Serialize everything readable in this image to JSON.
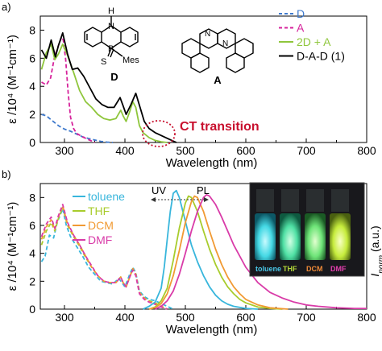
{
  "panel_labels": [
    "a)",
    "b)"
  ],
  "molecules": {
    "d_label": "D",
    "a_label": "A",
    "d_atoms": {
      "h": "H",
      "n": "N",
      "p": "P",
      "s": "S",
      "mes": "Mes"
    },
    "a_atoms": {
      "n1": "N",
      "n2": "N"
    }
  },
  "ct_label": "CT transition",
  "photo": {
    "labels": [
      "toluene",
      "THF",
      "DCM",
      "DMF"
    ],
    "label_colors": [
      "#49c6e6",
      "#b4d93a",
      "#f08a38",
      "#e63fb0"
    ]
  },
  "annot": {
    "uv": "UV",
    "pl": "PL"
  },
  "colors": {
    "D": "#3e79cc",
    "A": "#d6239b",
    "2D+A": "#8fc63c",
    "D-A-D": "#000000",
    "toluene": "#38b6dc",
    "THF": "#a8cc2c",
    "DCM": "#f19a33",
    "DMF": "#d93ba8",
    "ct": "#c8102e"
  },
  "chart_data": [
    {
      "type": "line",
      "xlabel": "Wavelength (nm)",
      "ylabel": "ε /10⁴ (M⁻¹cm⁻¹)",
      "xlim": [
        260,
        800
      ],
      "ylim": [
        0,
        9
      ],
      "x_ticks": [
        300,
        400,
        500,
        600,
        700,
        800
      ],
      "y_ticks": [
        0,
        2,
        4,
        6,
        8
      ],
      "legend_position": "top-right",
      "series": [
        {
          "name": "D",
          "style": "dashed",
          "x": [
            262,
            270,
            280,
            290,
            300,
            310,
            320,
            330,
            340,
            350,
            360,
            370,
            380
          ],
          "y": [
            2.0,
            1.9,
            1.55,
            1.2,
            0.95,
            0.8,
            0.6,
            0.4,
            0.28,
            0.18,
            0.08,
            0.03,
            0
          ]
        },
        {
          "name": "A",
          "style": "dashed",
          "x": [
            262,
            270,
            277,
            283,
            290,
            295,
            298,
            302,
            306,
            310,
            315,
            320,
            330,
            340,
            350
          ],
          "y": [
            4.3,
            4.1,
            4.6,
            6.0,
            6.9,
            7.5,
            7.3,
            5.9,
            3.6,
            1.8,
            1.0,
            0.65,
            0.4,
            0.2,
            0
          ]
        },
        {
          "name": "2D + A",
          "style": "solid",
          "x": [
            262,
            270,
            278,
            284,
            290,
            297,
            305,
            315,
            325,
            335,
            345,
            355,
            365,
            375,
            385,
            393,
            397,
            402,
            408,
            413,
            418,
            424,
            430,
            440,
            450,
            460,
            470
          ],
          "y": [
            5.2,
            6.4,
            7.0,
            5.9,
            6.3,
            7.0,
            6.2,
            5.0,
            3.7,
            2.9,
            2.5,
            2.0,
            1.7,
            1.6,
            1.7,
            2.3,
            1.9,
            1.5,
            2.2,
            2.9,
            2.5,
            1.2,
            0.7,
            0.35,
            0.15,
            0.05,
            0
          ]
        },
        {
          "name": "D-A-D (1)",
          "style": "solid",
          "x": [
            262,
            270,
            278,
            285,
            290,
            297,
            305,
            313,
            322,
            332,
            342,
            352,
            362,
            372,
            382,
            392,
            397,
            402,
            410,
            418,
            425,
            432,
            440,
            450,
            460,
            470,
            480,
            485
          ],
          "y": [
            6.6,
            6.0,
            7.3,
            6.1,
            6.9,
            7.8,
            6.3,
            5.2,
            5.3,
            4.7,
            3.9,
            3.1,
            2.7,
            2.5,
            2.5,
            3.2,
            2.6,
            2.0,
            2.7,
            3.5,
            2.5,
            1.5,
            1.0,
            0.7,
            0.5,
            0.3,
            0.1,
            0
          ]
        }
      ]
    },
    {
      "type": "line",
      "xlabel": "Wavelength (nm)",
      "ylabel": "ε /10⁴ (M⁻¹cm⁻¹)",
      "y2label": "I_norm (a.u.)",
      "xlim": [
        260,
        800
      ],
      "ylim": [
        0,
        9
      ],
      "x_ticks": [
        300,
        400,
        500,
        600,
        700,
        800
      ],
      "y_ticks": [
        0,
        2,
        4,
        6,
        8
      ],
      "legend_position": "top-left",
      "series": [
        {
          "name": "toluene",
          "kind": "absorption",
          "style": "dashed",
          "x": [
            262,
            268,
            275,
            282,
            288,
            297,
            303,
            310,
            320,
            330,
            340,
            350,
            360,
            370,
            380,
            390,
            395,
            400,
            407,
            413,
            418,
            424,
            432,
            440,
            450,
            460,
            470,
            480
          ],
          "y": [
            3.4,
            3.8,
            5.3,
            5.1,
            6.2,
            7.2,
            6.0,
            5.2,
            4.5,
            3.8,
            3.0,
            2.5,
            2.0,
            1.9,
            1.8,
            2.2,
            1.9,
            1.6,
            2.4,
            3.0,
            2.6,
            1.3,
            0.9,
            0.7,
            0.6,
            0.4,
            0.2,
            0
          ]
        },
        {
          "name": "THF",
          "kind": "absorption",
          "style": "dashed",
          "x": [
            262,
            270,
            278,
            284,
            290,
            297,
            305,
            315,
            325,
            335,
            345,
            355,
            365,
            375,
            385,
            393,
            397,
            402,
            408,
            413,
            418,
            424,
            432,
            440,
            450,
            460,
            470
          ],
          "y": [
            4.6,
            5.6,
            6.2,
            5.6,
            6.5,
            7.3,
            6.0,
            5.2,
            4.5,
            3.7,
            3.0,
            2.4,
            2.0,
            1.9,
            1.9,
            2.3,
            1.9,
            1.6,
            2.3,
            2.9,
            2.5,
            1.2,
            0.8,
            0.6,
            0.45,
            0.2,
            0
          ]
        },
        {
          "name": "DCM",
          "kind": "absorption",
          "style": "dashed",
          "x": [
            262,
            270,
            278,
            284,
            290,
            297,
            305,
            315,
            325,
            335,
            345,
            355,
            365,
            375,
            385,
            393,
            397,
            402,
            408,
            413,
            418,
            424,
            432,
            440,
            450,
            460,
            470
          ],
          "y": [
            5.0,
            5.9,
            6.4,
            5.7,
            6.6,
            7.4,
            6.1,
            5.3,
            4.6,
            3.8,
            3.0,
            2.4,
            2.0,
            1.9,
            1.9,
            2.3,
            1.9,
            1.6,
            2.3,
            2.9,
            2.5,
            1.2,
            0.8,
            0.55,
            0.4,
            0.2,
            0
          ]
        },
        {
          "name": "DMF",
          "kind": "absorption",
          "style": "dashed",
          "x": [
            262,
            270,
            278,
            284,
            290,
            297,
            305,
            315,
            325,
            335,
            345,
            355,
            365,
            375,
            385,
            393,
            397,
            402,
            408,
            413,
            418,
            424,
            432,
            440,
            450,
            460,
            470
          ],
          "y": [
            5.2,
            6.1,
            6.6,
            5.8,
            6.7,
            7.5,
            6.2,
            5.3,
            4.6,
            3.8,
            3.1,
            2.4,
            2.0,
            1.9,
            1.9,
            2.3,
            1.9,
            1.6,
            2.3,
            2.8,
            2.4,
            1.1,
            0.7,
            0.5,
            0.35,
            0.15,
            0
          ]
        },
        {
          "name": "toluene",
          "kind": "emission",
          "style": "solid",
          "x": [
            430,
            440,
            450,
            460,
            465,
            470,
            475,
            480,
            485,
            490,
            500,
            510,
            520,
            530,
            540,
            550,
            560,
            570,
            580,
            600,
            620
          ],
          "y": [
            0,
            0.2,
            0.5,
            1.5,
            3.0,
            5.0,
            7.0,
            8.3,
            8.5,
            8.0,
            6.3,
            4.6,
            3.4,
            2.4,
            1.6,
            1.0,
            0.6,
            0.35,
            0.2,
            0.05,
            0
          ]
        },
        {
          "name": "THF",
          "kind": "emission",
          "style": "solid",
          "x": [
            440,
            450,
            460,
            470,
            480,
            490,
            500,
            505,
            510,
            520,
            530,
            540,
            550,
            560,
            570,
            580,
            590,
            600,
            620,
            640,
            660
          ],
          "y": [
            0,
            0.15,
            0.6,
            1.5,
            3.5,
            5.8,
            7.6,
            8.1,
            8.0,
            7.0,
            5.6,
            4.3,
            3.2,
            2.3,
            1.6,
            1.1,
            0.7,
            0.45,
            0.15,
            0.05,
            0
          ]
        },
        {
          "name": "DCM",
          "kind": "emission",
          "style": "solid",
          "x": [
            440,
            450,
            460,
            470,
            480,
            490,
            500,
            510,
            515,
            520,
            530,
            540,
            550,
            560,
            570,
            580,
            590,
            600,
            620,
            640,
            670
          ],
          "y": [
            0,
            0.1,
            0.4,
            1.1,
            2.4,
            4.2,
            6.2,
            7.7,
            8.1,
            8.0,
            7.0,
            5.6,
            4.3,
            3.2,
            2.3,
            1.6,
            1.1,
            0.7,
            0.3,
            0.1,
            0
          ]
        },
        {
          "name": "DMF",
          "kind": "emission",
          "style": "solid",
          "x": [
            450,
            460,
            470,
            480,
            490,
            500,
            510,
            520,
            530,
            535,
            540,
            550,
            560,
            570,
            580,
            600,
            620,
            640,
            660,
            680,
            700,
            720,
            750,
            780,
            800
          ],
          "y": [
            0,
            0.2,
            0.6,
            1.3,
            2.5,
            4.0,
            5.6,
            7.0,
            8.0,
            8.2,
            8.1,
            7.5,
            6.6,
            5.6,
            4.6,
            3.0,
            1.9,
            1.2,
            0.8,
            0.5,
            0.3,
            0.2,
            0.1,
            0.05,
            0.05
          ]
        }
      ]
    }
  ]
}
